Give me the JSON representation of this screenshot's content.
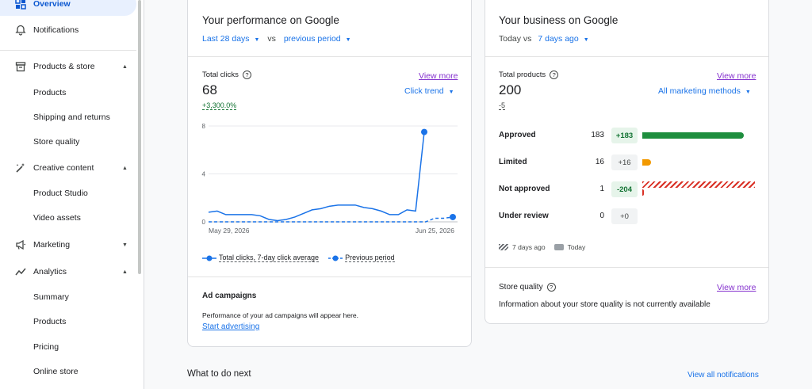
{
  "sidebar": {
    "items": [
      {
        "label": "Overview",
        "icon": "dashboard-icon"
      },
      {
        "label": "Notifications",
        "icon": "bell-icon"
      },
      {
        "label": "Products & store",
        "icon": "store-icon"
      },
      {
        "label": "Products"
      },
      {
        "label": "Shipping and returns"
      },
      {
        "label": "Store quality"
      },
      {
        "label": "Creative content",
        "icon": "magic-wand-icon"
      },
      {
        "label": "Product Studio"
      },
      {
        "label": "Video assets"
      },
      {
        "label": "Marketing",
        "icon": "megaphone-icon"
      },
      {
        "label": "Analytics",
        "icon": "trending-icon"
      },
      {
        "label": "Summary"
      },
      {
        "label": "Products"
      },
      {
        "label": "Pricing"
      },
      {
        "label": "Online store"
      }
    ]
  },
  "performance": {
    "title": "Your performance on Google",
    "range": "Last 28 days",
    "vs": "vs",
    "compare": "previous period",
    "metric_label": "Total clicks",
    "metric_value": "68",
    "metric_change": "+3,300.0%",
    "view_more": "View more",
    "trend_select": "Click trend",
    "legend_current": "Total clicks, 7-day click average",
    "legend_previous": "Previous period",
    "ad_title": "Ad campaigns",
    "ad_text": "Performance of your ad campaigns will appear here.",
    "ad_link": "Start advertising"
  },
  "chart_data": {
    "type": "line",
    "x_start": "May 29, 2026",
    "x_end": "Jun 25, 2026",
    "y_ticks": [
      "8",
      "4",
      "0"
    ],
    "ylim": [
      0,
      8
    ],
    "series": [
      {
        "name": "Total clicks, 7-day click average",
        "color": "#1a73e8",
        "values": [
          0.8,
          0.9,
          0.6,
          0.6,
          0.6,
          0.6,
          0.5,
          0.2,
          0.1,
          0.2,
          0.4,
          0.7,
          1.0,
          1.1,
          1.3,
          1.4,
          1.4,
          1.4,
          1.2,
          1.1,
          0.9,
          0.6,
          0.6,
          1.0,
          0.9,
          7.5
        ]
      },
      {
        "name": "Previous period",
        "color": "#1a73e8",
        "dashed": true,
        "values": [
          0,
          0,
          0,
          0,
          0,
          0,
          0,
          0,
          0,
          0,
          0,
          0,
          0,
          0,
          0,
          0,
          0,
          0,
          0,
          0,
          0,
          0,
          0,
          0,
          0,
          0.3,
          0.3,
          0.4
        ]
      }
    ]
  },
  "business": {
    "title": "Your business on Google",
    "today": "Today vs",
    "compare": "7 days ago",
    "metric_label": "Total products",
    "metric_value": "200",
    "metric_change": "-5",
    "view_more": "View more",
    "methods_select": "All marketing methods",
    "rows": [
      {
        "name": "Approved",
        "count": "183",
        "delta": "+183",
        "fill": 0.915,
        "color": "#1e8e3e"
      },
      {
        "name": "Limited",
        "count": "16",
        "delta": "+16",
        "fill": 0.08,
        "color": "#f29900"
      },
      {
        "name": "Not approved",
        "count": "1",
        "delta": "-204",
        "fill": 0.005,
        "color": "#d93025"
      },
      {
        "name": "Under review",
        "count": "0",
        "delta": "+0",
        "fill": 0,
        "color": "#9aa0a6"
      }
    ],
    "legend_past": "7 days ago",
    "legend_today": "Today",
    "quality_title": "Store quality",
    "quality_link": "View more",
    "quality_text": "Information about your store quality is not currently available"
  },
  "next": {
    "title": "What to do next",
    "link": "View all notifications"
  }
}
